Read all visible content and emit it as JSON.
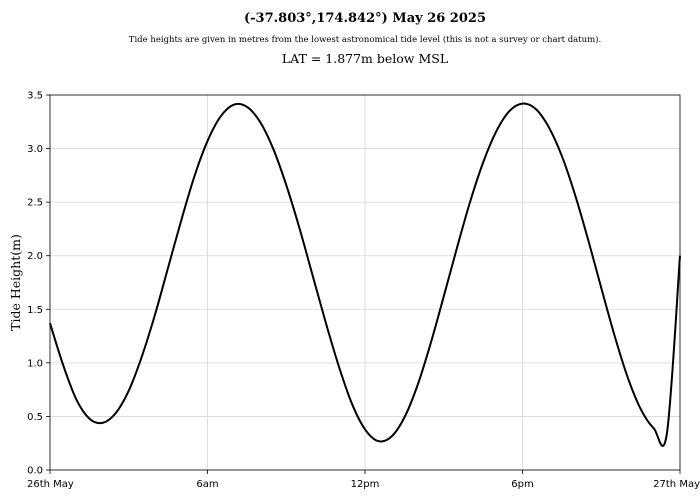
{
  "chart_data": {
    "type": "line",
    "title": "(-37.803°,174.842°) May 26 2025",
    "subtitle": "Tide heights are given in metres from the lowest astronomical tide level (this is not a survey or chart datum).",
    "subtitle2": "LAT = 1.877m below MSL",
    "xlabel": "",
    "ylabel": "Tide Height(m)",
    "xlim": [
      0,
      24
    ],
    "ylim": [
      0,
      3.5
    ],
    "grid": true,
    "x_ticks": [
      {
        "value": 0,
        "label": "26th May"
      },
      {
        "value": 6,
        "label": "6am"
      },
      {
        "value": 12,
        "label": "12pm"
      },
      {
        "value": 18,
        "label": "6pm"
      },
      {
        "value": 24,
        "label": "27th May"
      }
    ],
    "y_ticks": [
      0.0,
      0.5,
      1.0,
      1.5,
      2.0,
      2.5,
      3.0,
      3.5
    ],
    "series": [
      {
        "color": "#000000",
        "x": [
          0,
          0.5,
          1,
          1.5,
          2,
          2.5,
          3,
          3.5,
          4,
          4.5,
          5,
          5.5,
          6,
          6.5,
          7,
          7.5,
          8,
          8.5,
          9,
          9.5,
          10,
          10.5,
          11,
          11.5,
          12,
          12.5,
          13,
          13.5,
          14,
          14.5,
          15,
          15.5,
          16,
          16.5,
          17,
          17.5,
          18,
          18.5,
          19,
          19.5,
          20,
          20.5,
          21,
          21.5,
          22,
          22.5,
          23,
          23.5,
          24
        ],
        "values": [
          1.37,
          0.98,
          0.66,
          0.48,
          0.44,
          0.53,
          0.74,
          1.06,
          1.45,
          1.89,
          2.33,
          2.74,
          3.07,
          3.3,
          3.41,
          3.39,
          3.25,
          3.0,
          2.66,
          2.26,
          1.82,
          1.38,
          0.97,
          0.62,
          0.38,
          0.27,
          0.31,
          0.49,
          0.79,
          1.18,
          1.62,
          2.07,
          2.5,
          2.87,
          3.16,
          3.35,
          3.42,
          3.37,
          3.2,
          2.93,
          2.57,
          2.15,
          1.7,
          1.26,
          0.87,
          0.57,
          0.39,
          0.34,
          2.0
        ]
      }
    ]
  }
}
